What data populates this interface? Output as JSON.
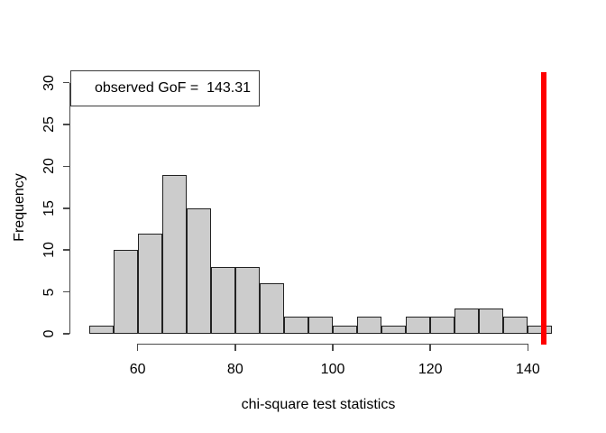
{
  "chart_data": {
    "type": "bar",
    "subtype": "histogram",
    "title": "",
    "xlabel": "chi-square test statistics",
    "ylabel": "Frequency",
    "bin_edges": [
      50,
      55,
      60,
      65,
      70,
      75,
      80,
      85,
      90,
      95,
      100,
      105,
      110,
      115,
      120,
      125,
      130,
      135,
      140,
      145
    ],
    "frequencies": [
      1,
      10,
      12,
      19,
      15,
      8,
      8,
      6,
      2,
      2,
      1,
      2,
      1,
      2,
      2,
      3,
      3,
      2,
      1
    ],
    "x_ticks": [
      60,
      80,
      100,
      120,
      140
    ],
    "y_ticks": [
      0,
      5,
      10,
      15,
      20,
      25,
      30
    ],
    "xlim": [
      46.2,
      148.8
    ],
    "ylim": [
      -1.24,
      31.24
    ],
    "grid": "off",
    "legend": {
      "position": "topleft",
      "text": "observed GoF =  143.31"
    },
    "vline": {
      "value": 143.31,
      "color": "#ff0000"
    },
    "colors": {
      "bar_fill": "#cccccc",
      "bar_border": "#222222",
      "axis": "#4a4a4a",
      "text": "#000000",
      "background": "#ffffff"
    }
  }
}
